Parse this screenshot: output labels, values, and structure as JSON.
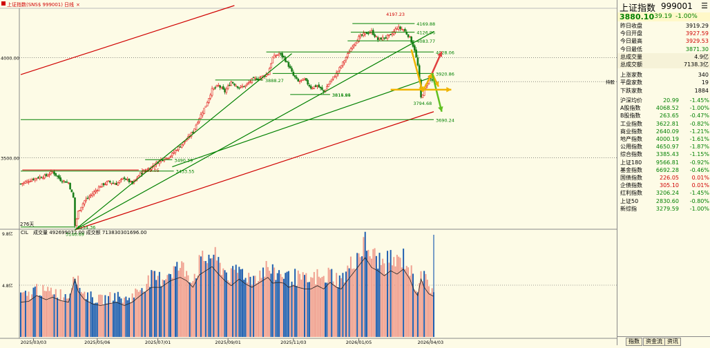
{
  "header": {
    "title": "上证指数(SNS$ 999001)",
    "period": "日线",
    "panel_label": "276天",
    "volume_label": "CIL",
    "volume_text": "成交量 492699072.00  成交额 713830301696.00",
    "vol_axis_high": "9.8亿",
    "vol_axis_mid": "4.8亿",
    "marker_label": "持股"
  },
  "quote": {
    "name": "上证指数",
    "code": "999001",
    "price": "3880.10",
    "change": "-39.19",
    "change_pct": "-1.00%",
    "menu": "☰",
    "rows": [
      {
        "label": "昨日收盘",
        "value": "3919.29",
        "color": "#000000"
      },
      {
        "label": "今日开盘",
        "value": "3927.59",
        "color": "#d00000"
      },
      {
        "label": "今日最高",
        "value": "3929.53",
        "color": "#d00000"
      },
      {
        "label": "今日最低",
        "value": "3871.30",
        "color": "#008000"
      },
      {
        "label": "总成交量",
        "value": "4.9亿",
        "color": "#000000"
      },
      {
        "label": "总成交额",
        "value": "7138.3亿",
        "color": "#000000"
      },
      {
        "label": "上涨家数",
        "value": "340",
        "color": "#000000"
      },
      {
        "label": "平盘家数",
        "value": "19",
        "color": "#000000"
      },
      {
        "label": "下跌家数",
        "value": "1884",
        "color": "#000000"
      }
    ],
    "indices": [
      {
        "name": "沪深均价",
        "value": "20.99",
        "pct": "-1.45%",
        "vcolor": "#008000",
        "pcolor": "#008000"
      },
      {
        "name": "A股指数",
        "value": "4068.52",
        "pct": "-1.00%",
        "vcolor": "#008000",
        "pcolor": "#008000"
      },
      {
        "name": "B股指数",
        "value": "263.65",
        "pct": "-0.47%",
        "vcolor": "#008000",
        "pcolor": "#008000"
      },
      {
        "name": "工业指数",
        "value": "3622.81",
        "pct": "-0.82%",
        "vcolor": "#008000",
        "pcolor": "#008000"
      },
      {
        "name": "商业指数",
        "value": "2640.09",
        "pct": "-1.21%",
        "vcolor": "#008000",
        "pcolor": "#008000"
      },
      {
        "name": "地产指数",
        "value": "4000.19",
        "pct": "-1.61%",
        "vcolor": "#008000",
        "pcolor": "#008000"
      },
      {
        "name": "公用指数",
        "value": "4650.97",
        "pct": "-1.87%",
        "vcolor": "#008000",
        "pcolor": "#008000"
      },
      {
        "name": "综合指数",
        "value": "3385.43",
        "pct": "-1.15%",
        "vcolor": "#008000",
        "pcolor": "#008000"
      },
      {
        "name": "上证180",
        "value": "9566.81",
        "pct": "-0.92%",
        "vcolor": "#008000",
        "pcolor": "#008000"
      },
      {
        "name": "基金指数",
        "value": "6692.28",
        "pct": "-0.46%",
        "vcolor": "#008000",
        "pcolor": "#008000"
      },
      {
        "name": "国债指数",
        "value": "226.05",
        "pct": "0.01%",
        "vcolor": "#d00000",
        "pcolor": "#d00000"
      },
      {
        "name": "企债指数",
        "value": "305.10",
        "pct": "0.01%",
        "vcolor": "#d00000",
        "pcolor": "#d00000"
      },
      {
        "name": "红利指数",
        "value": "3206.24",
        "pct": "-1.45%",
        "vcolor": "#008000",
        "pcolor": "#008000"
      },
      {
        "name": "上证50",
        "value": "2830.60",
        "pct": "-0.80%",
        "vcolor": "#008000",
        "pcolor": "#008000"
      },
      {
        "name": "新综指",
        "value": "3279.59",
        "pct": "-1.00%",
        "vcolor": "#008000",
        "pcolor": "#008000"
      }
    ],
    "tabs": [
      "指数",
      "资金流",
      "资讯"
    ]
  },
  "chart_data": {
    "type": "candlestick",
    "price_ylim": [
      3150,
      4260
    ],
    "y_ticks": [
      {
        "value": 4000,
        "label": "4000.00"
      },
      {
        "value": 3500,
        "label": "3500.00"
      }
    ],
    "x_ticks": [
      {
        "index": 8,
        "label": "2025/03/03"
      },
      {
        "index": 48,
        "label": "2025/05/06"
      },
      {
        "index": 86,
        "label": "2025/07/01"
      },
      {
        "index": 130,
        "label": "2025/09/01"
      },
      {
        "index": 171,
        "label": "2025/11/03"
      },
      {
        "index": 212,
        "label": "2026/01/05"
      },
      {
        "index": 257,
        "label": "2026/04/03"
      }
    ],
    "bar_count": 260,
    "close_anchors": [
      [
        0,
        3370
      ],
      [
        5,
        3385
      ],
      [
        10,
        3400
      ],
      [
        16,
        3410
      ],
      [
        20,
        3430
      ],
      [
        25,
        3390
      ],
      [
        30,
        3375
      ],
      [
        33,
        3300
      ],
      [
        34,
        3160
      ],
      [
        36,
        3230
      ],
      [
        40,
        3285
      ],
      [
        45,
        3320
      ],
      [
        50,
        3360
      ],
      [
        55,
        3380
      ],
      [
        60,
        3370
      ],
      [
        65,
        3400
      ],
      [
        70,
        3370
      ],
      [
        75,
        3420
      ],
      [
        82,
        3455
      ],
      [
        88,
        3490
      ],
      [
        94,
        3510
      ],
      [
        100,
        3560
      ],
      [
        104,
        3590
      ],
      [
        108,
        3630
      ],
      [
        112,
        3700
      ],
      [
        116,
        3760
      ],
      [
        120,
        3840
      ],
      [
        124,
        3860
      ],
      [
        128,
        3830
      ],
      [
        132,
        3880
      ],
      [
        137,
        3850
      ],
      [
        141,
        3860
      ],
      [
        145,
        3890
      ],
      [
        150,
        3900
      ],
      [
        155,
        3920
      ],
      [
        158,
        4000
      ],
      [
        162,
        4020
      ],
      [
        165,
        4000
      ],
      [
        168,
        3960
      ],
      [
        171,
        3910
      ],
      [
        174,
        3880
      ],
      [
        178,
        3890
      ],
      [
        182,
        3850
      ],
      [
        186,
        3860
      ],
      [
        190,
        3830
      ],
      [
        194,
        3880
      ],
      [
        198,
        3920
      ],
      [
        201,
        3960
      ],
      [
        204,
        4000
      ],
      [
        208,
        4060
      ],
      [
        212,
        4100
      ],
      [
        216,
        4120
      ],
      [
        220,
        4130
      ],
      [
        224,
        4090
      ],
      [
        228,
        4100
      ],
      [
        232,
        4110
      ],
      [
        236,
        4150
      ],
      [
        240,
        4140
      ],
      [
        244,
        4100
      ],
      [
        247,
        4040
      ],
      [
        249,
        3960
      ],
      [
        251,
        3800
      ],
      [
        253,
        3840
      ],
      [
        256,
        3900
      ],
      [
        259,
        3880
      ]
    ],
    "volume_ylim": [
      0,
      10.5
    ],
    "volume_anchors": [
      [
        0,
        4.2
      ],
      [
        5,
        4.3
      ],
      [
        10,
        5.0
      ],
      [
        16,
        4.5
      ],
      [
        20,
        4.8
      ],
      [
        25,
        4.4
      ],
      [
        30,
        4.2
      ],
      [
        34,
        7.0
      ],
      [
        36,
        5.5
      ],
      [
        40,
        4.5
      ],
      [
        45,
        4.0
      ],
      [
        50,
        3.8
      ],
      [
        55,
        4.0
      ],
      [
        60,
        4.2
      ],
      [
        65,
        3.8
      ],
      [
        70,
        4.2
      ],
      [
        75,
        5.0
      ],
      [
        82,
        6.0
      ],
      [
        88,
        6.0
      ],
      [
        94,
        6.8
      ],
      [
        100,
        7.2
      ],
      [
        104,
        6.8
      ],
      [
        108,
        6.0
      ],
      [
        112,
        7.5
      ],
      [
        116,
        8.0
      ],
      [
        120,
        8.5
      ],
      [
        124,
        7.6
      ],
      [
        128,
        6.8
      ],
      [
        132,
        6.2
      ],
      [
        137,
        7.0
      ],
      [
        141,
        6.4
      ],
      [
        145,
        6.0
      ],
      [
        150,
        6.6
      ],
      [
        155,
        7.2
      ],
      [
        158,
        6.5
      ],
      [
        162,
        6.6
      ],
      [
        165,
        6.5
      ],
      [
        168,
        6.0
      ],
      [
        171,
        6.2
      ],
      [
        174,
        6.0
      ],
      [
        178,
        5.8
      ],
      [
        182,
        5.8
      ],
      [
        186,
        6.2
      ],
      [
        190,
        5.8
      ],
      [
        194,
        6.6
      ],
      [
        198,
        6.0
      ],
      [
        201,
        5.8
      ],
      [
        204,
        6.6
      ],
      [
        208,
        7.6
      ],
      [
        212,
        8.6
      ],
      [
        216,
        9.6
      ],
      [
        220,
        8.4
      ],
      [
        224,
        8.0
      ],
      [
        228,
        7.4
      ],
      [
        232,
        8.0
      ],
      [
        236,
        7.6
      ],
      [
        240,
        8.2
      ],
      [
        244,
        7.0
      ],
      [
        247,
        5.5
      ],
      [
        249,
        5.0
      ],
      [
        251,
        7.0
      ],
      [
        253,
        6.0
      ],
      [
        256,
        5.2
      ],
      [
        259,
        4.9
      ]
    ],
    "horizontal_levels": [
      {
        "value": 3439.05,
        "start": 1,
        "end": 74,
        "label": "3439.05",
        "color": "#d00000"
      },
      {
        "value": 3433.55,
        "start": 0,
        "end": 96,
        "label": "3433.55",
        "color": "#008000"
      },
      {
        "value": 3490.39,
        "start": 78,
        "end": 95,
        "label": "3490.39",
        "color": "#008000"
      },
      {
        "value": 3154.36,
        "start": 0,
        "end": 34,
        "label": "3154.36",
        "color": "#008000"
      },
      {
        "value": 3888.27,
        "start": 122,
        "end": 152,
        "label": "3888.27",
        "color": "#008000"
      },
      {
        "value": 3815.84,
        "start": 169,
        "end": 194,
        "label": "3815.84",
        "color": "#008000"
      },
      {
        "value": 3814.95,
        "start": 194,
        "end": 194,
        "label": "3814.95",
        "color": "#008000"
      },
      {
        "value": 4028.06,
        "start": 154,
        "end": 259,
        "label": "4028.06",
        "color": "#008000"
      },
      {
        "value": 4083.77,
        "start": 205,
        "end": 247,
        "label": "4083.77",
        "color": "#008000"
      },
      {
        "value": 4126.96,
        "start": 207,
        "end": 247,
        "label": "4126.96",
        "color": "#008000"
      },
      {
        "value": 4169.88,
        "start": 208,
        "end": 247,
        "label": "4169.88",
        "color": "#008000"
      },
      {
        "value": 3920.86,
        "start": 158,
        "end": 259,
        "label": "3920.86",
        "color": "#008000"
      },
      {
        "value": 3690.24,
        "start": 0,
        "end": 259,
        "label": "3690.24",
        "color": "#008000"
      }
    ],
    "point_labels": [
      {
        "value": 4197.23,
        "index": 235,
        "label": "4197.23",
        "color": "#d00000"
      },
      {
        "value": 3794.68,
        "index": 252,
        "label": "3794.68",
        "color": "#008000"
      },
      {
        "value": 3140.69,
        "index": 34,
        "label": "3140.69",
        "color": "#008000"
      }
    ],
    "trend_lines": [
      {
        "from": [
          0,
          3915
        ],
        "to": [
          134,
          4260
        ],
        "color": "#d00000"
      },
      {
        "from": [
          34,
          3140
        ],
        "to": [
          259,
          3730
        ],
        "color": "#d00000"
      },
      {
        "from": [
          34,
          3140
        ],
        "to": [
          170,
          4020
        ],
        "color": "#008000"
      },
      {
        "from": [
          34,
          3140
        ],
        "to": [
          259,
          4130
        ],
        "color": "#008000"
      },
      {
        "from": [
          95,
          3455
        ],
        "to": [
          259,
          3905
        ],
        "color": "#008000"
      }
    ],
    "scenario_arrows": [
      {
        "from": [
          245,
          4040
        ],
        "to": [
          252,
          3830
        ],
        "color": "#f0b400"
      },
      {
        "from": [
          252,
          3830
        ],
        "to": [
          258,
          3922
        ],
        "color": "#f0b400"
      },
      {
        "from": [
          258,
          3922
        ],
        "to": [
          264,
          4030
        ],
        "color": "#e04040"
      },
      {
        "from": [
          258,
          3922
        ],
        "to": [
          262,
          3855
        ],
        "color": "#f0b400"
      },
      {
        "from": [
          258,
          3922
        ],
        "to": [
          264,
          3730
        ],
        "color": "#60c020"
      },
      {
        "from": [
          232,
          3840
        ],
        "to": [
          270,
          3840
        ],
        "color": "#f0b400"
      }
    ]
  }
}
